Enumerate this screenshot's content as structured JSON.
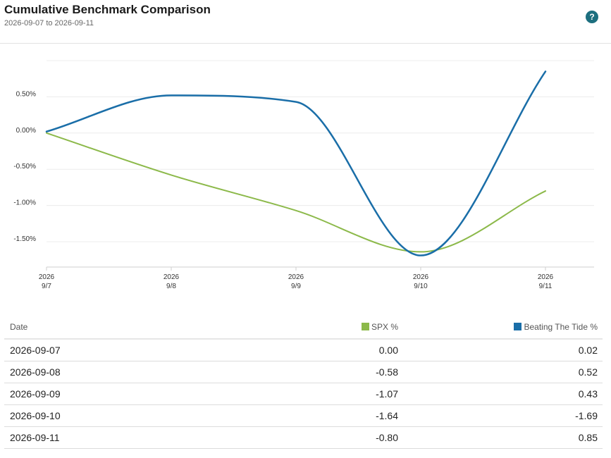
{
  "header": {
    "title": "Cumulative Benchmark Comparison",
    "subtitle": "2026-09-07 to 2026-09-11"
  },
  "icons": {
    "help": "help-icon"
  },
  "colors": {
    "spx": "#8cb94a",
    "btt": "#1a6ea8",
    "help": "#1d6f7f"
  },
  "chart_data": {
    "type": "line",
    "x": [
      "2026-09-07",
      "2026-09-08",
      "2026-09-09",
      "2026-09-10",
      "2026-09-11"
    ],
    "x_tick_labels": [
      [
        "2026",
        "9/7"
      ],
      [
        "2026",
        "9/8"
      ],
      [
        "2026",
        "9/9"
      ],
      [
        "2026",
        "9/10"
      ],
      [
        "2026",
        "9/11"
      ]
    ],
    "y_ticks": [
      0.5,
      0.0,
      -0.5,
      -1.0,
      -1.5
    ],
    "y_tick_labels": [
      "0.50%",
      "0.00%",
      "-0.50%",
      "-1.00%",
      "-1.50%"
    ],
    "ylim": [
      -1.85,
      1.0
    ],
    "grid": true,
    "series": [
      {
        "name": "SPX %",
        "color": "#8cb94a",
        "values": [
          0.0,
          -0.58,
          -1.07,
          -1.64,
          -0.8
        ]
      },
      {
        "name": "Beating The Tide %",
        "color": "#1a6ea8",
        "values": [
          0.02,
          0.52,
          0.43,
          -1.69,
          0.85
        ]
      }
    ]
  },
  "table": {
    "headers": {
      "date": "Date",
      "spx": "SPX %",
      "btt": "Beating The Tide %"
    },
    "rows": [
      {
        "date": "2026-09-07",
        "spx": "0.00",
        "btt": "0.02"
      },
      {
        "date": "2026-09-08",
        "spx": "-0.58",
        "btt": "0.52"
      },
      {
        "date": "2026-09-09",
        "spx": "-1.07",
        "btt": "0.43"
      },
      {
        "date": "2026-09-10",
        "spx": "-1.64",
        "btt": "-1.69"
      },
      {
        "date": "2026-09-11",
        "spx": "-0.80",
        "btt": "0.85"
      }
    ]
  }
}
